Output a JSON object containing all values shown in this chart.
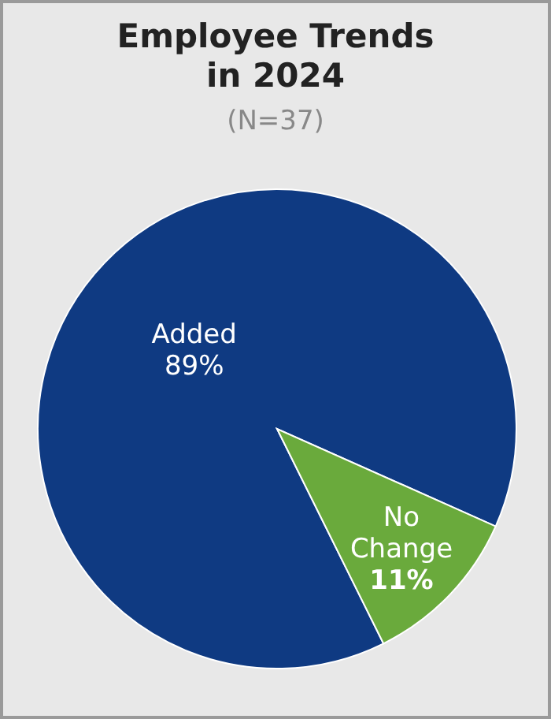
{
  "chart_data": {
    "type": "pie",
    "title": "Employee Trends in 2024",
    "subtitle": "(N=37)",
    "categories": [
      "Added",
      "No Change"
    ],
    "values": [
      89,
      11
    ],
    "colors": [
      "#0f3a82",
      "#6aaa3c"
    ],
    "value_labels": [
      "89%",
      "11%"
    ]
  }
}
